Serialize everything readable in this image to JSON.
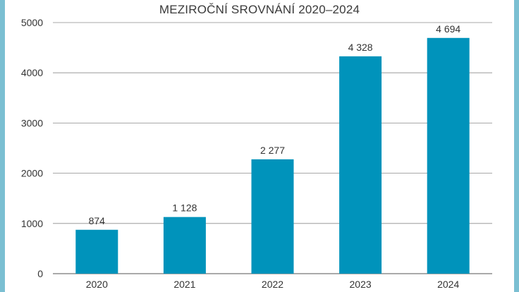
{
  "chart_data": {
    "type": "bar",
    "title": "MEZIROČNÍ SROVNÁNÍ 2020–2024",
    "xlabel": "",
    "ylabel": "",
    "categories": [
      "2020",
      "2021",
      "2022",
      "2023",
      "2024"
    ],
    "values": [
      874,
      1128,
      2277,
      4328,
      4694
    ],
    "data_labels": [
      "874",
      "1 128",
      "2 277",
      "4 328",
      "4 694"
    ],
    "ylim": [
      0,
      5000
    ],
    "yticks": [
      0,
      1000,
      2000,
      3000,
      4000,
      5000
    ],
    "ytick_labels": [
      "0",
      "1000",
      "2000",
      "3000",
      "4000",
      "5000"
    ],
    "grid": true,
    "legend": "none",
    "colors": {
      "bar": "#0093bb",
      "grid": "#8c8c8c",
      "frame": "#7bbfd2",
      "text": "#333333"
    }
  }
}
